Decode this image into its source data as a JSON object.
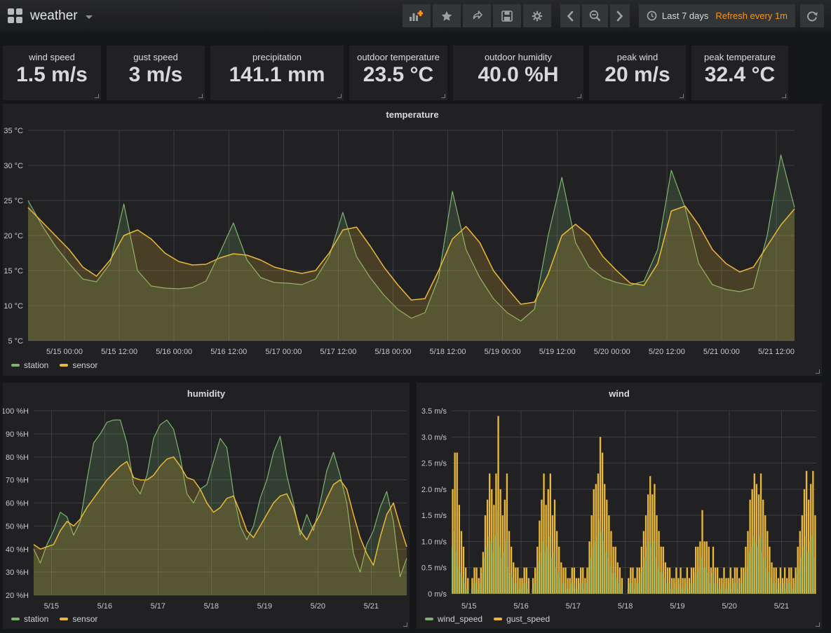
{
  "navbar": {
    "title": "weather",
    "icons": {
      "logo": "grafana-apps-logo",
      "toolbar": [
        "add-panel",
        "star-dashboard",
        "share-dashboard",
        "save-dashboard",
        "dashboard-settings"
      ],
      "nav": [
        "time-back",
        "zoom-out-time",
        "time-forward"
      ]
    },
    "timepicker": {
      "range": "Last 7 days",
      "refresh": "Refresh every 1m"
    }
  },
  "colors": {
    "series_green": "#7eb26d",
    "series_yellow": "#eab839",
    "accent_orange": "#f7941e",
    "grid": "#3a3d40",
    "tick_text": "#c7c8c9"
  },
  "stats": {
    "items": [
      {
        "label": "wind speed",
        "value": "1.5 m/s"
      },
      {
        "label": "gust speed",
        "value": "3 m/s"
      },
      {
        "label": "precipitation",
        "value": "141.1 mm"
      },
      {
        "label": "outdoor temperature",
        "value": "23.5 °C"
      },
      {
        "label": "outdoor humidity",
        "value": "40.0 %H"
      },
      {
        "label": "peak wind",
        "value": "20 m/s"
      },
      {
        "label": "peak temperature",
        "value": "32.4 °C"
      }
    ]
  },
  "chart_data": [
    {
      "type": "area",
      "title": "temperature",
      "ylabel": "°C",
      "ylim": [
        5,
        35
      ],
      "y_step": 5,
      "y_tick_labels": [
        "5 °C",
        "10 °C",
        "15 °C",
        "20 °C",
        "25 °C",
        "30 °C",
        "35 °C"
      ],
      "x_hours_total": 168,
      "sample_step_hours": 3,
      "x_tick_hours": [
        8,
        20,
        32,
        44,
        56,
        68,
        80,
        92,
        104,
        116,
        128,
        140,
        152,
        164
      ],
      "x_tick_labels": [
        "5/15 00:00",
        "5/15 12:00",
        "5/16 00:00",
        "5/16 12:00",
        "5/17 00:00",
        "5/17 12:00",
        "5/18 00:00",
        "5/18 12:00",
        "5/19 00:00",
        "5/19 12:00",
        "5/20 00:00",
        "5/20 12:00",
        "5/21 00:00",
        "5/21 12:00"
      ],
      "legend_position": "bottom-left",
      "grid": true,
      "series": [
        {
          "name": "station",
          "color": "#7eb26d",
          "values": [
            25,
            21.5,
            18.5,
            16,
            13.8,
            13.4,
            16,
            24.5,
            15,
            12.8,
            12.5,
            12.4,
            12.6,
            13.5,
            17.5,
            21.8,
            16.5,
            14,
            13.3,
            13.2,
            13,
            13.8,
            17,
            23.3,
            17,
            14,
            11.5,
            9.5,
            8.2,
            9,
            14,
            26.3,
            18,
            14,
            11,
            9,
            7.8,
            9.5,
            20,
            28.3,
            19,
            15.5,
            14,
            13.3,
            12.9,
            13.5,
            18,
            29.3,
            24,
            16,
            13,
            12.3,
            12,
            12.5,
            20,
            31.5,
            24
          ]
        },
        {
          "name": "sensor",
          "color": "#eab839",
          "values": [
            24,
            22,
            20,
            18,
            15.5,
            14.2,
            16.5,
            20,
            20.8,
            19.5,
            17.5,
            16.3,
            15.8,
            15.9,
            16.8,
            17.4,
            17.2,
            16.5,
            15.5,
            15,
            14.6,
            15,
            17.5,
            20.8,
            21.2,
            18.5,
            15.5,
            13,
            10.8,
            11,
            15,
            19.5,
            21.3,
            19,
            15,
            12.5,
            10.2,
            10.5,
            14.5,
            20,
            21.6,
            20,
            17,
            15,
            13.2,
            12.9,
            16,
            23.5,
            24.2,
            21.5,
            18,
            16,
            14.8,
            15.5,
            18.5,
            21.5,
            23.8
          ]
        }
      ]
    },
    {
      "type": "area",
      "title": "humidity",
      "ylabel": "%H",
      "ylim": [
        20,
        100
      ],
      "y_step": 10,
      "y_tick_labels": [
        "20 %H",
        "30 %H",
        "40 %H",
        "50 %H",
        "60 %H",
        "70 %H",
        "80 %H",
        "90 %H",
        "100 %H"
      ],
      "x_hours_total": 168,
      "sample_step_hours": 3,
      "x_tick_hours": [
        8,
        32,
        56,
        80,
        104,
        128,
        152
      ],
      "x_tick_labels": [
        "5/15",
        "5/16",
        "5/17",
        "5/18",
        "5/19",
        "5/20",
        "5/21"
      ],
      "legend_position": "bottom-left",
      "grid": true,
      "series": [
        {
          "name": "station",
          "color": "#7eb26d",
          "values": [
            40,
            34,
            42,
            48,
            56,
            54,
            46,
            52,
            70,
            86,
            90,
            95,
            96,
            96,
            86,
            68,
            64,
            72,
            88,
            94,
            96,
            92,
            80,
            64,
            60,
            66,
            68,
            78,
            88,
            84,
            64,
            50,
            44,
            50,
            62,
            70,
            82,
            89,
            72,
            60,
            46,
            55,
            48,
            60,
            74,
            82,
            72,
            60,
            38,
            30,
            42,
            48,
            58,
            65,
            52,
            28,
            36
          ]
        },
        {
          "name": "sensor",
          "color": "#eab839",
          "values": [
            42,
            40,
            41,
            42,
            48,
            52,
            50,
            53,
            58,
            62,
            66,
            70,
            73,
            76,
            78,
            71,
            70,
            70,
            72,
            76,
            79,
            80,
            76,
            71,
            70,
            66,
            60,
            56,
            58,
            62,
            63,
            56,
            48,
            45,
            50,
            55,
            60,
            63,
            64,
            58,
            48,
            44,
            50,
            55,
            62,
            68,
            70,
            66,
            55,
            45,
            38,
            33,
            45,
            55,
            60,
            50,
            41
          ]
        }
      ]
    },
    {
      "type": "bar",
      "title": "wind",
      "ylabel": "m/s",
      "ylim": [
        0,
        3.5
      ],
      "y_step": 0.5,
      "y_tick_labels": [
        "0 m/s",
        "0.5 m/s",
        "1.0 m/s",
        "1.5 m/s",
        "2.0 m/s",
        "2.5 m/s",
        "3.0 m/s",
        "3.5 m/s"
      ],
      "x_hours_total": 168,
      "sample_step_hours": 1,
      "x_tick_hours": [
        8,
        32,
        56,
        80,
        104,
        128,
        152
      ],
      "x_tick_labels": [
        "5/15",
        "5/16",
        "5/17",
        "5/18",
        "5/19",
        "5/20",
        "5/21"
      ],
      "legend_position": "bottom-left",
      "grid": true,
      "series": [
        {
          "name": "gust_speed",
          "color": "#eab839",
          "values": [
            2,
            2.7,
            2.7,
            1.7,
            1.2,
            0.9,
            0.5,
            0.3,
            0,
            0.3,
            0.5,
            0.5,
            0.3,
            0.5,
            0.8,
            1.5,
            1.8,
            2.3,
            2,
            1.7,
            2.3,
            3.4,
            2,
            1.5,
            1.8,
            2.3,
            1.2,
            0.9,
            0.6,
            0.5,
            0.5,
            0.3,
            0.3,
            0.5,
            0.5,
            0.3,
            0,
            0.3,
            0.5,
            0.9,
            1.4,
            1.8,
            2.3,
            1.7,
            2,
            2.3,
            1.5,
            1.8,
            1.2,
            0.9,
            0.6,
            0.5,
            0.5,
            0.3,
            0.3,
            0.5,
            0.5,
            0.3,
            0.3,
            0.5,
            0.5,
            0.3,
            0.5,
            1,
            1.5,
            2,
            2.1,
            2.3,
            3,
            2.7,
            2.1,
            1.8,
            1.5,
            1.2,
            0.9,
            0.9,
            0.6,
            0.5,
            0.3,
            0,
            0,
            0.3,
            0.5,
            0.5,
            0.3,
            0.5,
            0.5,
            0.9,
            1.2,
            1.5,
            1.9,
            2.25,
            1.9,
            2.1,
            1.5,
            1.2,
            0.9,
            0.9,
            0.6,
            0.5,
            0.5,
            0.3,
            0.3,
            0.5,
            0.3,
            0.5,
            0.3,
            0.3,
            0.5,
            0.3,
            0.5,
            0.5,
            0.9,
            0.9,
            1,
            1.6,
            1,
            1,
            0.9,
            0.5,
            0.9,
            0.5,
            0.5,
            0.3,
            0.3,
            0.5,
            0.3,
            0.3,
            0.5,
            0.3,
            0.5,
            0.5,
            0.3,
            0.5,
            0.5,
            0.9,
            1.2,
            1.8,
            2,
            2.3,
            2.1,
            1.9,
            2.3,
            1.8,
            1.5,
            1.2,
            0.9,
            0.6,
            0.5,
            0.5,
            0.3,
            0.5,
            0.3,
            0.5,
            0.3,
            0.5,
            0.5,
            0.3,
            0.5,
            0.9,
            1.2,
            1.5,
            2,
            2.35,
            1.8,
            2.1,
            2.35,
            1.5
          ]
        },
        {
          "name": "wind_speed",
          "color": "#7eb26d",
          "values": [
            0.9,
            1.2,
            0.8,
            0.5,
            0.4,
            0.3,
            0.2,
            0.1,
            0,
            0.1,
            0.2,
            0.2,
            0.1,
            0.2,
            0.4,
            0.7,
            0.9,
            1.1,
            1,
            0.8,
            1.1,
            1.6,
            0.9,
            0.7,
            0.8,
            1,
            0.5,
            0.4,
            0.3,
            0.2,
            0.2,
            0.1,
            0.1,
            0.2,
            0.2,
            0.1,
            0,
            0.1,
            0.2,
            0.4,
            0.6,
            0.8,
            1,
            0.8,
            0.9,
            1.1,
            0.7,
            0.8,
            0.5,
            0.4,
            0.3,
            0.2,
            0.2,
            0.1,
            0.1,
            0.2,
            0.2,
            0.1,
            0.1,
            0.2,
            0.2,
            0.1,
            0.2,
            0.5,
            0.7,
            0.9,
            1,
            1.1,
            1.4,
            1.2,
            1,
            0.8,
            0.7,
            0.5,
            0.4,
            0.4,
            0.3,
            0.2,
            0.1,
            0,
            0,
            0.1,
            0.2,
            0.2,
            0.1,
            0.2,
            0.2,
            0.4,
            0.5,
            0.7,
            0.9,
            1,
            0.9,
            1,
            0.7,
            0.5,
            0.4,
            0.4,
            0.3,
            0.2,
            0.2,
            0.1,
            0.1,
            0.2,
            0.1,
            0.2,
            0.1,
            0.1,
            0.2,
            0.1,
            0.2,
            0.2,
            0.4,
            0.4,
            0.5,
            0.7,
            0.5,
            0.5,
            0.4,
            0.2,
            0.4,
            0.2,
            0.2,
            0.1,
            0.1,
            0.2,
            0.1,
            0.1,
            0.2,
            0.1,
            0.2,
            0.2,
            0.1,
            0.2,
            0.2,
            0.4,
            0.5,
            0.8,
            0.9,
            1.1,
            1,
            0.9,
            1.1,
            0.8,
            0.7,
            0.5,
            0.4,
            0.3,
            0.2,
            0.2,
            0.1,
            0.2,
            0.1,
            0.2,
            0.1,
            0.2,
            0.2,
            0.1,
            0.2,
            0.4,
            0.5,
            0.7,
            0.9,
            1.1,
            0.8,
            1,
            1.1,
            0.7
          ]
        }
      ]
    }
  ]
}
